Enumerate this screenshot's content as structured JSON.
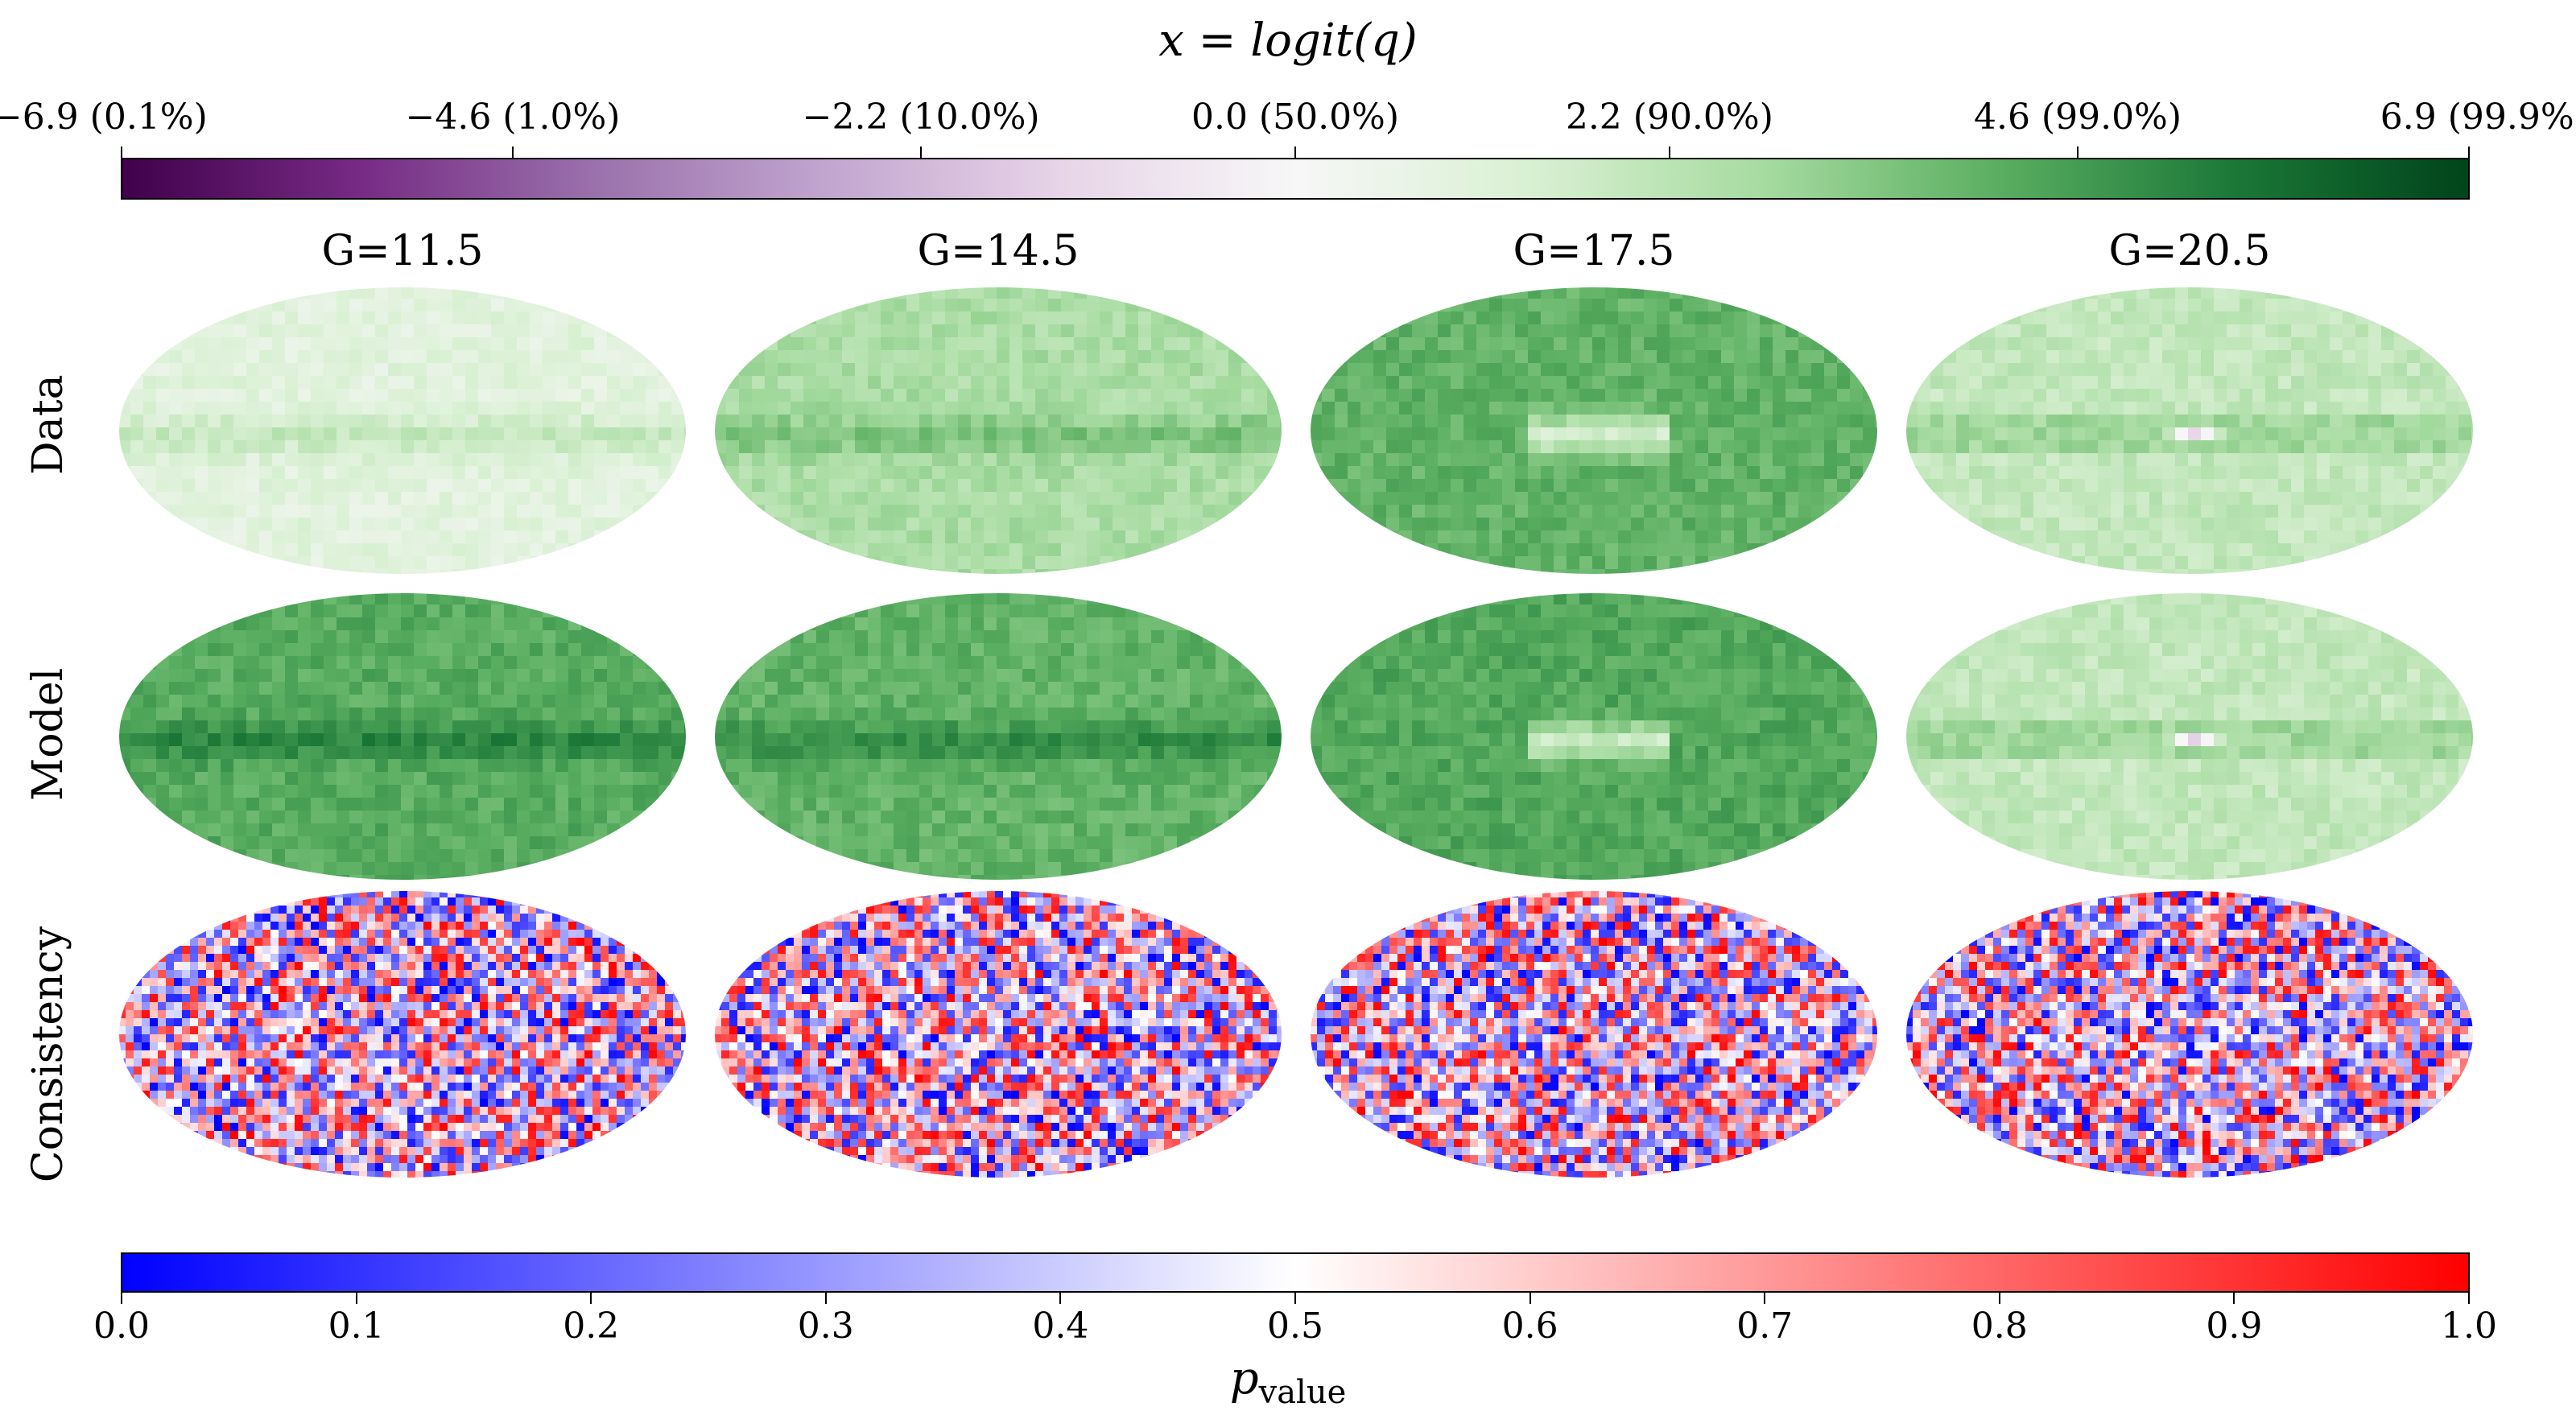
{
  "figure": {
    "title": "x = logit(q)",
    "columns": [
      "G=11.5",
      "G=14.5",
      "G=17.5",
      "G=20.5"
    ],
    "rows": [
      "Data",
      "Model",
      "Consistency"
    ]
  },
  "colorbars": {
    "top": {
      "cmap": [
        "#40004b",
        "#762a83",
        "#9970ab",
        "#c2a5cf",
        "#e7d4e8",
        "#f7f7f7",
        "#d9f0d3",
        "#a6dba0",
        "#5aae61",
        "#1b7837",
        "#00441b"
      ],
      "ticks": [
        {
          "value": -6.9,
          "label": "−6.9 (0.1%)"
        },
        {
          "value": -4.6,
          "label": "−4.6 (1.0%)"
        },
        {
          "value": -2.2,
          "label": "−2.2 (10.0%)"
        },
        {
          "value": 0.0,
          "label": "0.0 (50.0%)"
        },
        {
          "value": 2.2,
          "label": "2.2 (90.0%)"
        },
        {
          "value": 4.6,
          "label": "4.6 (99.0%)"
        },
        {
          "value": 6.9,
          "label": "6.9 (99.9%)"
        }
      ],
      "range": [
        -6.9,
        6.9
      ]
    },
    "bottom": {
      "label": "p_value",
      "label_main": "p",
      "label_sub": "value",
      "cmap": [
        "#0000ff",
        "#ffffff",
        "#ff0000"
      ],
      "ticks": [
        "0.0",
        "0.1",
        "0.2",
        "0.3",
        "0.4",
        "0.5",
        "0.6",
        "0.7",
        "0.8",
        "0.9",
        "1.0"
      ],
      "range": [
        0.0,
        1.0
      ]
    }
  },
  "chart_data": {
    "type": "heatmap",
    "title": "x = logit(q)",
    "projection": "mollweide",
    "panels": [
      {
        "row": "Data",
        "column": "G=11.5",
        "mean_logit": 1.0
      },
      {
        "row": "Data",
        "column": "G=14.5",
        "mean_logit": 2.6
      },
      {
        "row": "Data",
        "column": "G=17.5",
        "mean_logit": 4.0
      },
      {
        "row": "Data",
        "column": "G=20.5",
        "mean_logit": 2.0
      },
      {
        "row": "Model",
        "column": "G=11.5",
        "mean_logit": 4.2
      },
      {
        "row": "Model",
        "column": "G=14.5",
        "mean_logit": 4.0
      },
      {
        "row": "Model",
        "column": "G=17.5",
        "mean_logit": 4.3
      },
      {
        "row": "Model",
        "column": "G=20.5",
        "mean_logit": 2.0
      },
      {
        "row": "Consistency",
        "column": "G=11.5",
        "mean_pvalue": 0.5
      },
      {
        "row": "Consistency",
        "column": "G=14.5",
        "mean_pvalue": 0.5
      },
      {
        "row": "Consistency",
        "column": "G=17.5",
        "mean_pvalue": 0.5
      },
      {
        "row": "Consistency",
        "column": "G=20.5",
        "mean_pvalue": 0.55
      }
    ]
  }
}
